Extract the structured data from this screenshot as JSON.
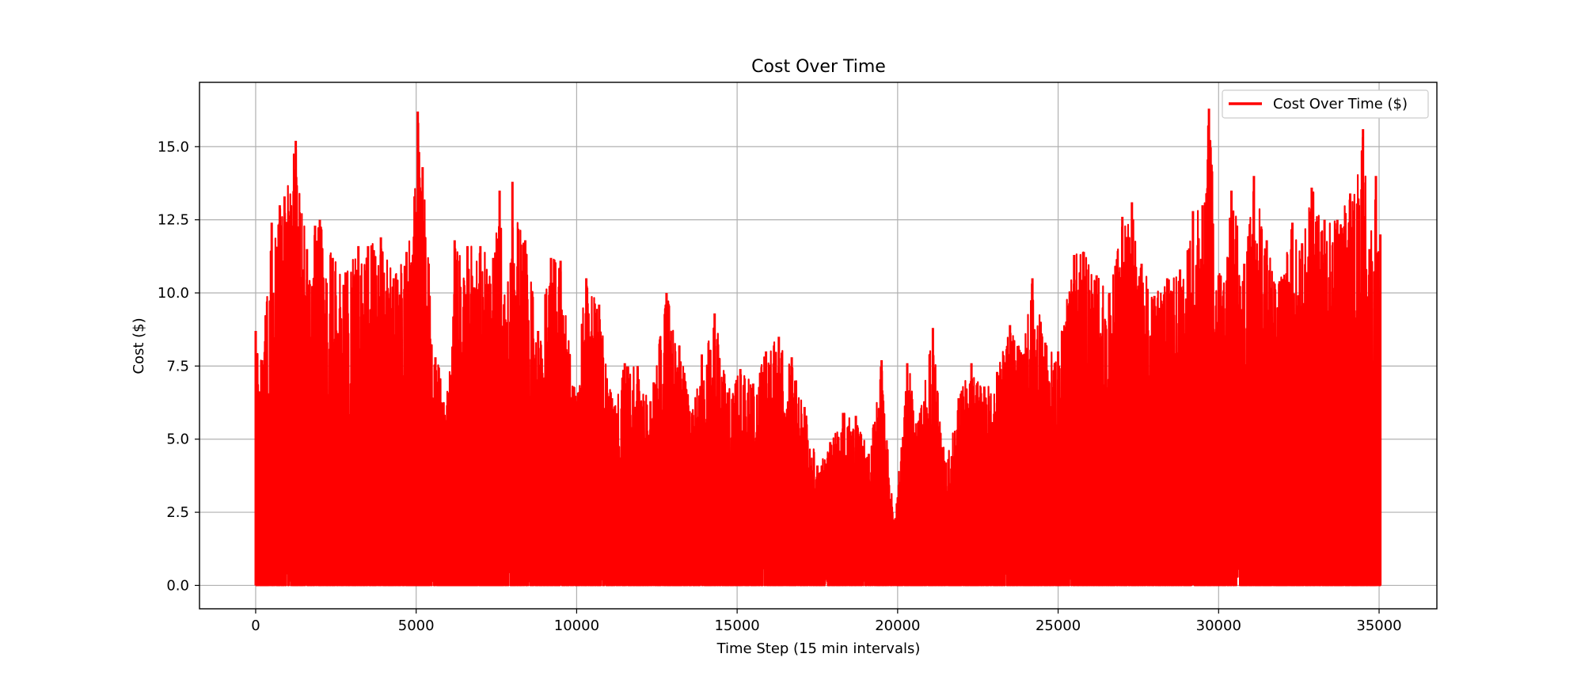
{
  "chart_data": {
    "type": "line",
    "title": "Cost Over Time",
    "xlabel": "Time Step (15 min intervals)",
    "ylabel": "Cost ($)",
    "xlim": [
      -1750,
      36800
    ],
    "ylim": [
      -0.8,
      17.2
    ],
    "xticks": [
      0,
      5000,
      10000,
      15000,
      20000,
      25000,
      30000,
      35000
    ],
    "xtick_labels": [
      "0",
      "5000",
      "10000",
      "15000",
      "20000",
      "25000",
      "30000",
      "35000"
    ],
    "yticks": [
      0.0,
      2.5,
      5.0,
      7.5,
      10.0,
      12.5,
      15.0
    ],
    "ytick_labels": [
      "0.0",
      "2.5",
      "5.0",
      "7.5",
      "10.0",
      "12.5",
      "15.0"
    ],
    "grid": true,
    "legend_position": "top-right",
    "series": [
      {
        "name": "Cost Over Time ($)",
        "color": "#ff0000",
        "x_start": 0,
        "x_end": 35040,
        "min": 0.0,
        "envelope_x": [
          0,
          200,
          500,
          750,
          900,
          1250,
          1600,
          1850,
          2000,
          2400,
          2800,
          3200,
          3500,
          3900,
          4300,
          4700,
          4950,
          5050,
          5200,
          5600,
          6000,
          6200,
          6600,
          7000,
          7400,
          7600,
          7800,
          8000,
          8400,
          8800,
          9200,
          9500,
          9900,
          10300,
          10700,
          11100,
          11500,
          11900,
          12300,
          12800,
          13200,
          13600,
          13900,
          14300,
          14700,
          15100,
          15500,
          15900,
          16300,
          16700,
          17100,
          17500,
          17900,
          18300,
          18700,
          19100,
          19500,
          19900,
          20300,
          20700,
          21100,
          21500,
          21900,
          22300,
          22700,
          23100,
          23500,
          23900,
          24200,
          24600,
          25000,
          25500,
          25800,
          26200,
          26600,
          27000,
          27300,
          27600,
          28000,
          28400,
          28800,
          29200,
          29500,
          29700,
          30000,
          30400,
          30800,
          31100,
          31500,
          31900,
          32300,
          32600,
          32900,
          33300,
          33700,
          34100,
          34500,
          34700,
          34900,
          35040
        ],
        "envelope_max": [
          8.7,
          7.7,
          12.4,
          13.0,
          13.3,
          15.2,
          11.5,
          12.3,
          12.5,
          11.2,
          10.7,
          11.6,
          11.6,
          11.9,
          10.5,
          11.4,
          13.3,
          16.2,
          14.3,
          7.8,
          6.6,
          11.8,
          11.6,
          11.6,
          11.2,
          13.5,
          9.0,
          13.8,
          11.8,
          8.7,
          11.2,
          11.1,
          6.8,
          10.5,
          9.6,
          6.4,
          7.6,
          7.5,
          6.3,
          10.0,
          8.2,
          5.9,
          7.9,
          9.3,
          6.6,
          7.4,
          6.9,
          8.0,
          8.5,
          7.8,
          6.1,
          4.1,
          4.9,
          5.9,
          5.8,
          4.5,
          7.7,
          2.1,
          7.6,
          5.9,
          8.8,
          4.2,
          6.4,
          7.6,
          6.8,
          7.3,
          8.9,
          7.9,
          10.5,
          8.3,
          8.0,
          11.3,
          11.4,
          10.6,
          10.0,
          12.6,
          13.1,
          11.0,
          9.9,
          10.5,
          10.8,
          12.8,
          13.0,
          16.3,
          10.6,
          13.5,
          11.0,
          14.0,
          11.8,
          10.4,
          12.4,
          11.7,
          13.6,
          12.5,
          12.5,
          13.4,
          15.6,
          11.5,
          14.0,
          12.0
        ]
      }
    ]
  }
}
